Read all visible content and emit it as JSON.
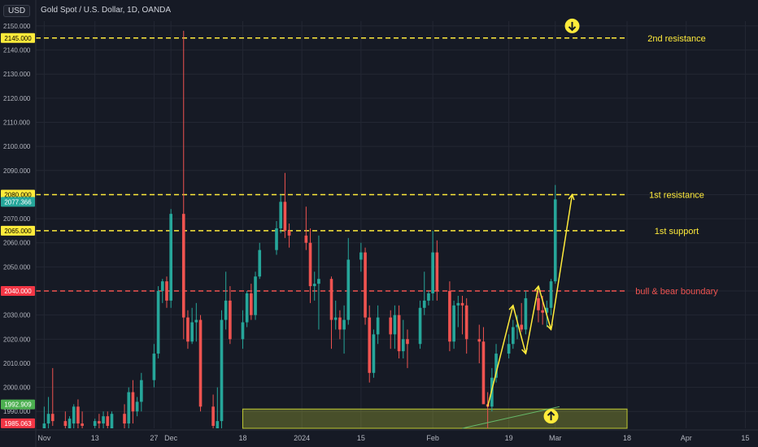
{
  "header": {
    "currency": "USD",
    "title": "Gold Spot / U.S. Dollar, 1D, OANDA"
  },
  "colors": {
    "background": "#161a25",
    "grid": "#232733",
    "up": "#26a69a",
    "down": "#ef5350",
    "annotation": "#ffeb3b",
    "boundary": "#ef5350",
    "axis_text": "#b2b5be",
    "green_badge": "#4caf50",
    "red_badge": "#f23645"
  },
  "chart_data": {
    "type": "candlestick",
    "title": "Gold Spot / U.S. Dollar, 1D, OANDA",
    "ylim": [
      1983,
      2152
    ],
    "xlim": [
      "2023-10-30",
      "2024-04-18"
    ],
    "y_ticks": [
      "1990.000",
      "2000.000",
      "2010.000",
      "2020.000",
      "2030.000",
      "2040.000",
      "2050.000",
      "2060.000",
      "2070.000",
      "2080.000",
      "2090.000",
      "2100.000",
      "2110.000",
      "2120.000",
      "2130.000",
      "2140.000",
      "2150.000"
    ],
    "x_ticks": [
      {
        "date": "2023-11-01",
        "label": "Nov"
      },
      {
        "date": "2023-11-13",
        "label": "13"
      },
      {
        "date": "2023-11-27",
        "label": "27"
      },
      {
        "date": "2023-12-01",
        "label": "Dec"
      },
      {
        "date": "2023-12-18",
        "label": "18"
      },
      {
        "date": "2024-01-01",
        "label": "2024"
      },
      {
        "date": "2024-01-15",
        "label": "15"
      },
      {
        "date": "2024-02-01",
        "label": "Feb"
      },
      {
        "date": "2024-02-19",
        "label": "19"
      },
      {
        "date": "2024-03-01",
        "label": "Mar"
      },
      {
        "date": "2024-03-18",
        "label": "18"
      },
      {
        "date": "2024-04-01",
        "label": "Apr"
      },
      {
        "date": "2024-04-15",
        "label": "15"
      }
    ],
    "candles": [
      {
        "t": "2023-11-01",
        "o": 1983,
        "h": 1992,
        "l": 1983,
        "c": 1985
      },
      {
        "t": "2023-11-02",
        "o": 1985,
        "h": 1996,
        "l": 1983,
        "c": 1989
      },
      {
        "t": "2023-11-03",
        "o": 1989,
        "h": 2008,
        "l": 1984,
        "c": 1986
      },
      {
        "t": "2023-11-06",
        "o": 1986,
        "h": 1990,
        "l": 1983,
        "c": 1984
      },
      {
        "t": "2023-11-07",
        "o": 1983,
        "h": 1988,
        "l": 1983,
        "c": 1987
      },
      {
        "t": "2023-11-08",
        "o": 1985,
        "h": 1993,
        "l": 1983,
        "c": 1992
      },
      {
        "t": "2023-11-09",
        "o": 1992,
        "h": 1995,
        "l": 1983,
        "c": 1985
      },
      {
        "t": "2023-11-10",
        "o": 1985,
        "h": 1990,
        "l": 1983,
        "c": 1984
      },
      {
        "t": "2023-11-13",
        "o": 1984,
        "h": 1987,
        "l": 1983,
        "c": 1986
      },
      {
        "t": "2023-11-14",
        "o": 1986,
        "h": 1989,
        "l": 1983,
        "c": 1985
      },
      {
        "t": "2023-11-15",
        "o": 1985,
        "h": 1990,
        "l": 1983,
        "c": 1988
      },
      {
        "t": "2023-11-16",
        "o": 1988,
        "h": 1990,
        "l": 1983,
        "c": 1984
      },
      {
        "t": "2023-11-17",
        "o": 1983,
        "h": 1990,
        "l": 1983,
        "c": 1989
      },
      {
        "t": "2023-11-20",
        "o": 1989,
        "h": 1993,
        "l": 1983,
        "c": 1985
      },
      {
        "t": "2023-11-21",
        "o": 1985,
        "h": 2000,
        "l": 1983,
        "c": 1998
      },
      {
        "t": "2023-11-22",
        "o": 1998,
        "h": 2003,
        "l": 1985,
        "c": 1990
      },
      {
        "t": "2023-11-23",
        "o": 1990,
        "h": 1996,
        "l": 1988,
        "c": 1994
      },
      {
        "t": "2023-11-24",
        "o": 1994,
        "h": 2006,
        "l": 1990,
        "c": 2003
      },
      {
        "t": "2023-11-27",
        "o": 2003,
        "h": 2018,
        "l": 2000,
        "c": 2014
      },
      {
        "t": "2023-11-28",
        "o": 2014,
        "h": 2042,
        "l": 2012,
        "c": 2040
      },
      {
        "t": "2023-11-29",
        "o": 2040,
        "h": 2045,
        "l": 2035,
        "c": 2044
      },
      {
        "t": "2023-11-30",
        "o": 2044,
        "h": 2046,
        "l": 2033,
        "c": 2036
      },
      {
        "t": "2023-12-01",
        "o": 2036,
        "h": 2074,
        "l": 2033,
        "c": 2072
      },
      {
        "t": "2023-12-04",
        "o": 2072,
        "h": 2148,
        "l": 2020,
        "c": 2029
      },
      {
        "t": "2023-12-05",
        "o": 2029,
        "h": 2032,
        "l": 2016,
        "c": 2019
      },
      {
        "t": "2023-12-06",
        "o": 2019,
        "h": 2033,
        "l": 2018,
        "c": 2027
      },
      {
        "t": "2023-12-07",
        "o": 2027,
        "h": 2035,
        "l": 2019,
        "c": 2028
      },
      {
        "t": "2023-12-08",
        "o": 2028,
        "h": 2030,
        "l": 1990,
        "c": 1992
      },
      {
        "t": "2023-12-11",
        "o": 1992,
        "h": 1997,
        "l": 1983,
        "c": 1984
      },
      {
        "t": "2023-12-12",
        "o": 1983,
        "h": 2000,
        "l": 1983,
        "c": 1986
      },
      {
        "t": "2023-12-13",
        "o": 1986,
        "h": 2032,
        "l": 1983,
        "c": 2028
      },
      {
        "t": "2023-12-14",
        "o": 2028,
        "h": 2048,
        "l": 2024,
        "c": 2036
      },
      {
        "t": "2023-12-15",
        "o": 2036,
        "h": 2042,
        "l": 2018,
        "c": 2020
      },
      {
        "t": "2023-12-18",
        "o": 2020,
        "h": 2032,
        "l": 2016,
        "c": 2027
      },
      {
        "t": "2023-12-19",
        "o": 2027,
        "h": 2040,
        "l": 2025,
        "c": 2039
      },
      {
        "t": "2023-12-20",
        "o": 2039,
        "h": 2043,
        "l": 2028,
        "c": 2030
      },
      {
        "t": "2023-12-21",
        "o": 2030,
        "h": 2048,
        "l": 2028,
        "c": 2046
      },
      {
        "t": "2023-12-22",
        "o": 2046,
        "h": 2060,
        "l": 2045,
        "c": 2057
      },
      {
        "t": "2023-12-26",
        "o": 2057,
        "h": 2069,
        "l": 2055,
        "c": 2066
      },
      {
        "t": "2023-12-27",
        "o": 2066,
        "h": 2080,
        "l": 2064,
        "c": 2077
      },
      {
        "t": "2023-12-28",
        "o": 2077,
        "h": 2089,
        "l": 2062,
        "c": 2065
      },
      {
        "t": "2023-12-29",
        "o": 2065,
        "h": 2068,
        "l": 2058,
        "c": 2063
      },
      {
        "t": "2024-01-02",
        "o": 2063,
        "h": 2075,
        "l": 2057,
        "c": 2060
      },
      {
        "t": "2024-01-03",
        "o": 2060,
        "h": 2066,
        "l": 2035,
        "c": 2042
      },
      {
        "t": "2024-01-04",
        "o": 2042,
        "h": 2048,
        "l": 2036,
        "c": 2043
      },
      {
        "t": "2024-01-05",
        "o": 2043,
        "h": 2063,
        "l": 2024,
        "c": 2045
      },
      {
        "t": "2024-01-08",
        "o": 2045,
        "h": 2046,
        "l": 2016,
        "c": 2028
      },
      {
        "t": "2024-01-09",
        "o": 2028,
        "h": 2036,
        "l": 2024,
        "c": 2029
      },
      {
        "t": "2024-01-10",
        "o": 2029,
        "h": 2032,
        "l": 2020,
        "c": 2024
      },
      {
        "t": "2024-01-11",
        "o": 2024,
        "h": 2034,
        "l": 2014,
        "c": 2028
      },
      {
        "t": "2024-01-12",
        "o": 2028,
        "h": 2062,
        "l": 2026,
        "c": 2053
      },
      {
        "t": "2024-01-15",
        "o": 2053,
        "h": 2060,
        "l": 2048,
        "c": 2056
      },
      {
        "t": "2024-01-16",
        "o": 2056,
        "h": 2058,
        "l": 2026,
        "c": 2029
      },
      {
        "t": "2024-01-17",
        "o": 2029,
        "h": 2034,
        "l": 2002,
        "c": 2006
      },
      {
        "t": "2024-01-18",
        "o": 2006,
        "h": 2024,
        "l": 2004,
        "c": 2022
      },
      {
        "t": "2024-01-19",
        "o": 2022,
        "h": 2034,
        "l": 2018,
        "c": 2029
      },
      {
        "t": "2024-01-22",
        "o": 2029,
        "h": 2032,
        "l": 2016,
        "c": 2022
      },
      {
        "t": "2024-01-23",
        "o": 2022,
        "h": 2034,
        "l": 2016,
        "c": 2030
      },
      {
        "t": "2024-01-24",
        "o": 2030,
        "h": 2034,
        "l": 2012,
        "c": 2015
      },
      {
        "t": "2024-01-25",
        "o": 2015,
        "h": 2028,
        "l": 2012,
        "c": 2020
      },
      {
        "t": "2024-01-26",
        "o": 2020,
        "h": 2024,
        "l": 2008,
        "c": 2018
      },
      {
        "t": "2024-01-29",
        "o": 2018,
        "h": 2036,
        "l": 2016,
        "c": 2033
      },
      {
        "t": "2024-01-30",
        "o": 2033,
        "h": 2048,
        "l": 2030,
        "c": 2036
      },
      {
        "t": "2024-01-31",
        "o": 2036,
        "h": 2040,
        "l": 2034,
        "c": 2039
      },
      {
        "t": "2024-02-01",
        "o": 2039,
        "h": 2065,
        "l": 2036,
        "c": 2056
      },
      {
        "t": "2024-02-02",
        "o": 2056,
        "h": 2061,
        "l": 2036,
        "c": 2040
      },
      {
        "t": "2024-02-05",
        "o": 2040,
        "h": 2044,
        "l": 2015,
        "c": 2019
      },
      {
        "t": "2024-02-06",
        "o": 2019,
        "h": 2036,
        "l": 2016,
        "c": 2034
      },
      {
        "t": "2024-02-07",
        "o": 2034,
        "h": 2038,
        "l": 2025,
        "c": 2035
      },
      {
        "t": "2024-02-08",
        "o": 2035,
        "h": 2038,
        "l": 2022,
        "c": 2034
      },
      {
        "t": "2024-02-09",
        "o": 2034,
        "h": 2037,
        "l": 2014,
        "c": 2020
      },
      {
        "t": "2024-02-12",
        "o": 2020,
        "h": 2026,
        "l": 2010,
        "c": 2019
      },
      {
        "t": "2024-02-13",
        "o": 2019,
        "h": 2025,
        "l": 1994,
        "c": 1993
      },
      {
        "t": "2024-02-14",
        "o": 1993,
        "h": 1998,
        "l": 1983,
        "c": 1992
      },
      {
        "t": "2024-02-15",
        "o": 1992,
        "h": 2008,
        "l": 1990,
        "c": 2004
      },
      {
        "t": "2024-02-16",
        "o": 2004,
        "h": 2018,
        "l": 2002,
        "c": 2014
      },
      {
        "t": "2024-02-19",
        "o": 2014,
        "h": 2022,
        "l": 2012,
        "c": 2018
      },
      {
        "t": "2024-02-20",
        "o": 2018,
        "h": 2028,
        "l": 2016,
        "c": 2025
      },
      {
        "t": "2024-02-21",
        "o": 2025,
        "h": 2030,
        "l": 2020,
        "c": 2026
      },
      {
        "t": "2024-02-22",
        "o": 2026,
        "h": 2035,
        "l": 2023,
        "c": 2024
      },
      {
        "t": "2024-02-23",
        "o": 2024,
        "h": 2040,
        "l": 2022,
        "c": 2037
      },
      {
        "t": "2024-02-26",
        "o": 2037,
        "h": 2040,
        "l": 2027,
        "c": 2032
      },
      {
        "t": "2024-02-27",
        "o": 2032,
        "h": 2038,
        "l": 2026,
        "c": 2031
      },
      {
        "t": "2024-02-28",
        "o": 2031,
        "h": 2036,
        "l": 2025,
        "c": 2033
      },
      {
        "t": "2024-02-29",
        "o": 2033,
        "h": 2045,
        "l": 2030,
        "c": 2044
      },
      {
        "t": "2024-03-01",
        "o": 2044,
        "h": 2084,
        "l": 2043,
        "c": 2078
      }
    ],
    "horizontal_lines": [
      {
        "price": 2145,
        "label": "2nd resistance",
        "price_label": "2145.000",
        "color": "#ffeb3b"
      },
      {
        "price": 2080,
        "label": "1st resistance",
        "price_label": "2080.000",
        "color": "#ffeb3b"
      },
      {
        "price": 2065,
        "label": "1st support",
        "price_label": "2065.000",
        "color": "#ffeb3b"
      },
      {
        "price": 2040,
        "label": "bull & bear boundary",
        "price_label": "2040.000",
        "color": "#ef5350"
      }
    ],
    "price_badges": [
      {
        "price": 2077,
        "label": "2077.366",
        "color": "#26a69a"
      },
      {
        "price": 1992.909,
        "label": "1992.909",
        "color": "#4caf50"
      },
      {
        "price": 1985.063,
        "label": "1985.063",
        "color": "#f23645"
      }
    ],
    "support_zone": {
      "from_date": "2023-12-18",
      "to_date": "2024-03-18",
      "price_low": 1983,
      "price_high": 1991
    },
    "zigzag_arrow": [
      {
        "t": "2024-02-14",
        "p": 1992
      },
      {
        "t": "2024-02-20",
        "p": 2034
      },
      {
        "t": "2024-02-23",
        "p": 2014
      },
      {
        "t": "2024-02-26",
        "p": 2042
      },
      {
        "t": "2024-02-29",
        "p": 2024
      },
      {
        "t": "2024-03-05",
        "p": 2080
      }
    ],
    "trend_line": [
      {
        "t": "2024-02-08",
        "p": 1983
      },
      {
        "t": "2024-03-02",
        "p": 1992
      }
    ],
    "markers": [
      {
        "t": "2024-03-05",
        "p": 2150,
        "direction": "down"
      },
      {
        "t": "2024-02-29",
        "p": 1988,
        "direction": "up"
      }
    ]
  }
}
